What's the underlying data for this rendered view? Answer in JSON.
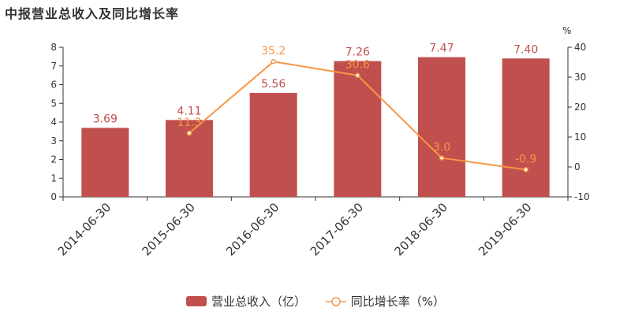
{
  "title": "中报营业总收入及同比增长率",
  "colors": {
    "bar": "#c0504d",
    "line": "#f79646",
    "axis": "#333333",
    "tick_text": "#333333"
  },
  "chart_data": {
    "type": "bar",
    "categories": [
      "2014-06-30",
      "2015-06-30",
      "2016-06-30",
      "2017-06-30",
      "2018-06-30",
      "2019-06-30"
    ],
    "series": [
      {
        "name": "营业总收入（亿）",
        "type": "bar",
        "axis": "left",
        "values": [
          3.69,
          4.11,
          5.56,
          7.26,
          7.47,
          7.4
        ],
        "labels": [
          "3.69",
          "4.11",
          "5.56",
          "7.26",
          "7.47",
          "7.40"
        ]
      },
      {
        "name": "同比增长率（%）",
        "type": "line",
        "axis": "right",
        "values": [
          null,
          11.3,
          35.2,
          30.6,
          3.0,
          -0.9
        ],
        "labels": [
          "",
          "11.3",
          "35.2",
          "30.6",
          "3.0",
          "-0.9"
        ]
      }
    ],
    "y_left": {
      "range": [
        0,
        8
      ],
      "ticks": [
        "0",
        "1",
        "2",
        "3",
        "4",
        "5",
        "6",
        "7",
        "8"
      ]
    },
    "y_right": {
      "range": [
        -10,
        40
      ],
      "ticks": [
        "-10",
        "0",
        "10",
        "20",
        "30",
        "40"
      ],
      "unit": "%"
    },
    "grid": false,
    "legend": "bottom"
  }
}
